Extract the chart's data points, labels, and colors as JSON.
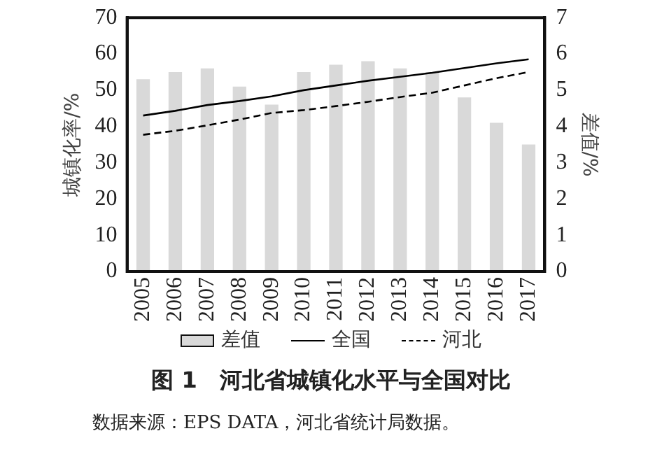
{
  "chart_data": {
    "type": "bar",
    "title": "图 1　河北省城镇化水平与全国对比",
    "ylabel": "城镇化率/%",
    "y2label": "差值/%",
    "annotations": [
      "数据来源：EPS DATA，河北省统计局数据。"
    ],
    "categories": [
      "2005",
      "2006",
      "2007",
      "2008",
      "2009",
      "2010",
      "2011",
      "2012",
      "2013",
      "2014",
      "2015",
      "2016",
      "2017"
    ],
    "series": [
      {
        "name": "差值",
        "axis": "y2",
        "color": "#d9d9d9",
        "values": [
          5.3,
          5.5,
          5.6,
          5.1,
          4.6,
          5.5,
          5.7,
          5.8,
          5.6,
          5.5,
          4.8,
          4.1,
          3.5
        ]
      },
      {
        "name": "全国",
        "type": "line",
        "color": "#000000",
        "line_style": "solid",
        "values": [
          43.0,
          44.3,
          45.9,
          47.0,
          48.3,
          50.0,
          51.3,
          52.6,
          53.7,
          54.8,
          56.1,
          57.4,
          58.5
        ]
      },
      {
        "name": "河北",
        "type": "line",
        "color": "#000000",
        "line_style": "dashed",
        "values": [
          37.7,
          38.8,
          40.3,
          41.9,
          43.7,
          44.5,
          45.6,
          46.8,
          48.1,
          49.3,
          51.3,
          53.3,
          55.0
        ]
      }
    ],
    "ylim": [
      0,
      70
    ],
    "yticks": [
      0,
      10,
      20,
      30,
      40,
      50,
      60,
      70
    ],
    "y2lim": [
      0,
      7
    ],
    "y2ticks": [
      0,
      1,
      2,
      3,
      4,
      5,
      6,
      7
    ],
    "grid": false,
    "legend": "bottom",
    "marker": "none"
  }
}
